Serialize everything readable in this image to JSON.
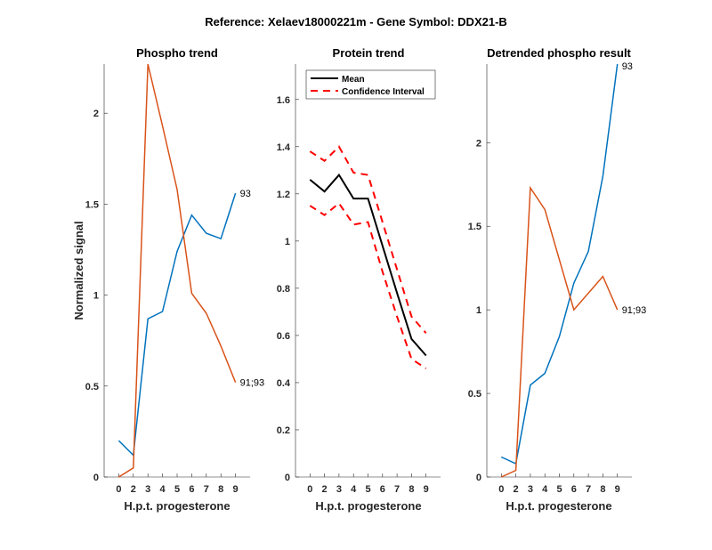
{
  "figure": {
    "suptitle": "Reference:  Xelaev18000221m - Gene Symbol:  DDX21-B"
  },
  "colors": {
    "blue": "#0072BD",
    "orange": "#D95319",
    "mean": "#000000",
    "ci": "#FF0000",
    "axis": "#262626"
  },
  "chart_data": [
    {
      "type": "line",
      "title": "Phospho trend",
      "xlabel": "H.p.t. progesterone",
      "ylabel": "Normalized signal",
      "categories": [
        "0",
        "2",
        "3",
        "4",
        "5",
        "6",
        "7",
        "8",
        "9"
      ],
      "ylim": [
        0,
        2.27
      ],
      "yticks": [
        "0",
        "0.5",
        "1",
        "1.5",
        "2"
      ],
      "ytick_values": [
        0,
        0.5,
        1,
        1.5,
        2
      ],
      "series": [
        {
          "name": "93",
          "color": "blue",
          "values": [
            0.2,
            0.12,
            0.87,
            0.91,
            1.24,
            1.44,
            1.34,
            1.31,
            1.56
          ]
        },
        {
          "name": "91;93",
          "color": "orange",
          "values": [
            0.0,
            0.05,
            2.27,
            1.93,
            1.58,
            1.01,
            0.9,
            0.72,
            0.52
          ]
        }
      ],
      "annotations": [
        "93",
        "91;93"
      ]
    },
    {
      "type": "line",
      "title": "Protein trend",
      "xlabel": "H.p.t. progesterone",
      "ylabel": "",
      "categories": [
        "0",
        "2",
        "3",
        "4",
        "5",
        "6",
        "7",
        "8",
        "9"
      ],
      "ylim": [
        0,
        1.75
      ],
      "yticks": [
        "0",
        "0.2",
        "0.4",
        "0.6",
        "0.8",
        "1",
        "1.2",
        "1.4",
        "1.6"
      ],
      "ytick_values": [
        0,
        0.2,
        0.4,
        0.6,
        0.8,
        1.0,
        1.2,
        1.4,
        1.6
      ],
      "legend": {
        "position": "top-left",
        "entries": [
          "Mean",
          "Confidence Interval"
        ]
      },
      "series": [
        {
          "name": "Mean",
          "color": "mean",
          "style": "solid",
          "values": [
            1.26,
            1.21,
            1.28,
            1.18,
            1.18,
            0.98,
            0.78,
            0.585,
            0.515
          ]
        },
        {
          "name": "Confidence Interval (upper)",
          "color": "ci",
          "style": "dashed",
          "values": [
            1.38,
            1.34,
            1.4,
            1.29,
            1.28,
            1.08,
            0.88,
            0.68,
            0.61
          ]
        },
        {
          "name": "Confidence Interval (lower)",
          "color": "ci",
          "style": "dashed",
          "values": [
            1.15,
            1.11,
            1.16,
            1.07,
            1.08,
            0.87,
            0.68,
            0.5,
            0.46
          ]
        }
      ]
    },
    {
      "type": "line",
      "title": "Detrended phospho result",
      "xlabel": "H.p.t. progesterone",
      "ylabel": "",
      "categories": [
        "0",
        "2",
        "3",
        "4",
        "5",
        "6",
        "7",
        "8",
        "9"
      ],
      "ylim": [
        0,
        2.47
      ],
      "yticks": [
        "0",
        "0.5",
        "1",
        "1.5",
        "2"
      ],
      "ytick_values": [
        0,
        0.5,
        1,
        1.5,
        2
      ],
      "series": [
        {
          "name": "93",
          "color": "blue",
          "values": [
            0.12,
            0.08,
            0.55,
            0.62,
            0.84,
            1.16,
            1.35,
            1.8,
            2.47
          ]
        },
        {
          "name": "91;93",
          "color": "orange",
          "values": [
            0.0,
            0.04,
            1.73,
            1.6,
            1.3,
            1.0,
            1.1,
            1.2,
            1.0
          ]
        }
      ],
      "annotations": [
        "93",
        "91;93"
      ]
    }
  ]
}
